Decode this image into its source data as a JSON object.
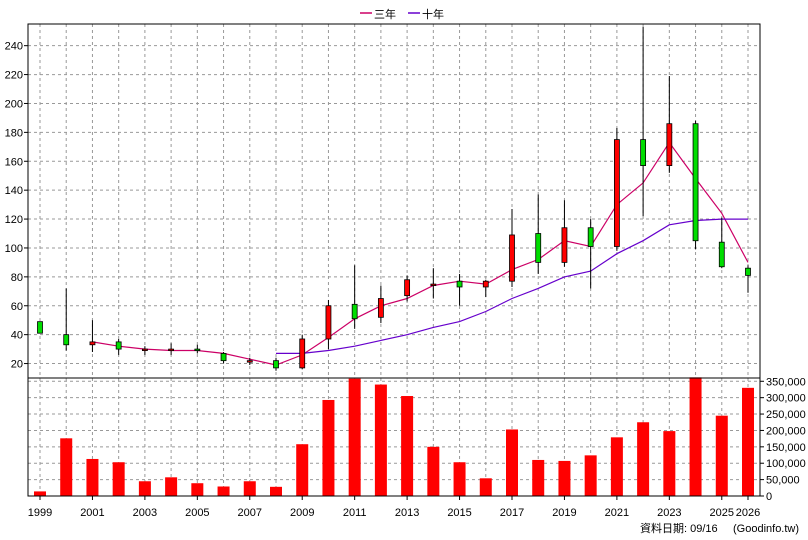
{
  "chart_data": [
    {
      "type": "candlestick",
      "title": "",
      "legend": {
        "placement": "top-center",
        "items": [
          {
            "name": "三年",
            "color": "#cc0066"
          },
          {
            "name": "十年",
            "color": "#6600cc"
          }
        ]
      },
      "x_tick_labels": [
        "1999",
        "2001",
        "2003",
        "2005",
        "2007",
        "2009",
        "2011",
        "2013",
        "2015",
        "2017",
        "2019",
        "2021",
        "2023",
        "2025",
        "2026"
      ],
      "y_ticks": [
        20,
        40,
        60,
        80,
        100,
        120,
        140,
        160,
        180,
        200,
        220,
        240
      ],
      "ylim": [
        10,
        255
      ],
      "grid": true,
      "up_color": "#ff0000",
      "down_color": "#00dd00",
      "candles": [
        {
          "year": 1999,
          "open": 49,
          "high": 49,
          "low": 41,
          "close": 41
        },
        {
          "year": 2000,
          "open": 40,
          "high": 72,
          "low": 29,
          "close": 33
        },
        {
          "year": 2001,
          "open": 33,
          "high": 50,
          "low": 28,
          "close": 35
        },
        {
          "year": 2002,
          "open": 35,
          "high": 37,
          "low": 26,
          "close": 30
        },
        {
          "year": 2003,
          "open": 30,
          "high": 32,
          "low": 26,
          "close": 30
        },
        {
          "year": 2004,
          "open": 29,
          "high": 34,
          "low": 26,
          "close": 30
        },
        {
          "year": 2005,
          "open": 30,
          "high": 33,
          "low": 27,
          "close": 29
        },
        {
          "year": 2006,
          "open": 27,
          "high": 28,
          "low": 20,
          "close": 22
        },
        {
          "year": 2007,
          "open": 21,
          "high": 24,
          "low": 19,
          "close": 22
        },
        {
          "year": 2008,
          "open": 22,
          "high": 24,
          "low": 15,
          "close": 17
        },
        {
          "year": 2009,
          "open": 17,
          "high": 40,
          "low": 16,
          "close": 37
        },
        {
          "year": 2010,
          "open": 37,
          "high": 64,
          "low": 30,
          "close": 60
        },
        {
          "year": 2011,
          "open": 61,
          "high": 88,
          "low": 44,
          "close": 51
        },
        {
          "year": 2012,
          "open": 52,
          "high": 74,
          "low": 48,
          "close": 65
        },
        {
          "year": 2013,
          "open": 67,
          "high": 81,
          "low": 63,
          "close": 78
        },
        {
          "year": 2014,
          "open": 75,
          "high": 86,
          "low": 65,
          "close": 75
        },
        {
          "year": 2015,
          "open": 77,
          "high": 82,
          "low": 60,
          "close": 73
        },
        {
          "year": 2016,
          "open": 73,
          "high": 78,
          "low": 66,
          "close": 77
        },
        {
          "year": 2017,
          "open": 77,
          "high": 127,
          "low": 73,
          "close": 109
        },
        {
          "year": 2018,
          "open": 110,
          "high": 137,
          "low": 82,
          "close": 90
        },
        {
          "year": 2019,
          "open": 90,
          "high": 133,
          "low": 87,
          "close": 114
        },
        {
          "year": 2020,
          "open": 114,
          "high": 120,
          "low": 72,
          "close": 101
        },
        {
          "year": 2021,
          "open": 101,
          "high": 183,
          "low": 98,
          "close": 175
        },
        {
          "year": 2022,
          "open": 175,
          "high": 253,
          "low": 122,
          "close": 157
        },
        {
          "year": 2023,
          "open": 157,
          "high": 219,
          "low": 152,
          "close": 186
        },
        {
          "year": 2024,
          "open": 186,
          "high": 188,
          "low": 99,
          "close": 105
        },
        {
          "year": 2025,
          "open": 104,
          "high": 121,
          "low": 86,
          "close": 87
        },
        {
          "year": 2026,
          "open": 86,
          "high": 88,
          "low": 69,
          "close": 81
        }
      ],
      "series": [
        {
          "name": "三年",
          "color": "#cc0066",
          "points": [
            [
              2001,
              35
            ],
            [
              2002,
              32
            ],
            [
              2003,
              30
            ],
            [
              2004,
              29
            ],
            [
              2005,
              29
            ],
            [
              2006,
              27
            ],
            [
              2007,
              23
            ],
            [
              2008,
              19
            ],
            [
              2009,
              26
            ],
            [
              2010,
              38
            ],
            [
              2011,
              51
            ],
            [
              2012,
              60
            ],
            [
              2013,
              65
            ],
            [
              2014,
              74
            ],
            [
              2015,
              77
            ],
            [
              2016,
              75
            ],
            [
              2017,
              85
            ],
            [
              2018,
              92
            ],
            [
              2019,
              105
            ],
            [
              2020,
              101
            ],
            [
              2021,
              130
            ],
            [
              2022,
              145
            ],
            [
              2023,
              173
            ],
            [
              2024,
              148
            ],
            [
              2025,
              124
            ],
            [
              2026,
              90
            ]
          ]
        },
        {
          "name": "十年",
          "color": "#6600cc",
          "points": [
            [
              2008,
              27
            ],
            [
              2009,
              27
            ],
            [
              2010,
              29
            ],
            [
              2011,
              32
            ],
            [
              2012,
              36
            ],
            [
              2013,
              40
            ],
            [
              2014,
              45
            ],
            [
              2015,
              49
            ],
            [
              2016,
              56
            ],
            [
              2017,
              65
            ],
            [
              2018,
              72
            ],
            [
              2019,
              80
            ],
            [
              2020,
              84
            ],
            [
              2021,
              96
            ],
            [
              2022,
              105
            ],
            [
              2023,
              116
            ],
            [
              2024,
              119
            ],
            [
              2025,
              120
            ],
            [
              2026,
              120
            ]
          ]
        }
      ]
    },
    {
      "type": "bar",
      "title": "",
      "y_tick_labels": [
        "0",
        "50,000",
        "100,000",
        "150,000",
        "200,000",
        "250,000",
        "300,000",
        "350,000"
      ],
      "ylim": [
        0,
        360000
      ],
      "bar_color": "#ff0000",
      "years": [
        1999,
        2000,
        2001,
        2002,
        2003,
        2004,
        2005,
        2006,
        2007,
        2008,
        2009,
        2010,
        2011,
        2012,
        2013,
        2014,
        2015,
        2016,
        2017,
        2018,
        2019,
        2020,
        2021,
        2022,
        2023,
        2024,
        2025,
        2026
      ],
      "values": [
        14000,
        176000,
        113000,
        103000,
        45000,
        57000,
        39000,
        29000,
        45000,
        28000,
        158000,
        293000,
        358000,
        340000,
        305000,
        150000,
        103000,
        54000,
        203000,
        110000,
        107000,
        124000,
        179000,
        225000,
        198000,
        362000,
        245000,
        330000
      ]
    }
  ],
  "footer": {
    "date_label": "資料日期: 09/16",
    "source": "(Goodinfo.tw)"
  }
}
